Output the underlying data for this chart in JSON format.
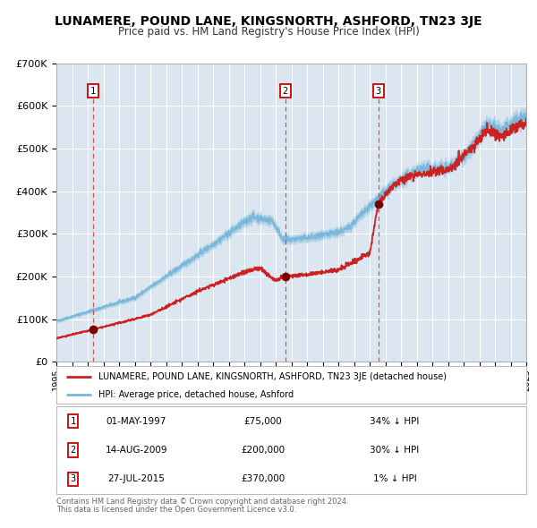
{
  "title": "LUNAMERE, POUND LANE, KINGSNORTH, ASHFORD, TN23 3JE",
  "subtitle": "Price paid vs. HM Land Registry's House Price Index (HPI)",
  "background_color": "#dce6f1",
  "plot_bg_color": "#dce6f1",
  "x_start_year": 1995,
  "x_end_year": 2025,
  "y_min": 0,
  "y_max": 700000,
  "y_ticks": [
    0,
    100000,
    200000,
    300000,
    400000,
    500000,
    600000,
    700000
  ],
  "y_tick_labels": [
    "£0",
    "£100K",
    "£200K",
    "£300K",
    "£400K",
    "£500K",
    "£600K",
    "£700K"
  ],
  "hpi_color": "#7ab8d9",
  "price_color": "#cc2222",
  "sale_marker_color": "#7a0000",
  "dashed_line_color": "#dd3333",
  "annotation_box_color": "#cc0000",
  "sales": [
    {
      "num": 1,
      "date": "01-MAY-1997",
      "price": 75000,
      "label": "34% ↓ HPI",
      "year": 1997.33
    },
    {
      "num": 2,
      "date": "14-AUG-2009",
      "price": 200000,
      "label": "30% ↓ HPI",
      "year": 2009.62
    },
    {
      "num": 3,
      "date": "27-JUL-2015",
      "price": 370000,
      "label": "1% ↓ HPI",
      "year": 2015.56
    }
  ],
  "legend_property_label": "LUNAMERE, POUND LANE, KINGSNORTH, ASHFORD, TN23 3JE (detached house)",
  "legend_hpi_label": "HPI: Average price, detached house, Ashford",
  "footer_line1": "Contains HM Land Registry data © Crown copyright and database right 2024.",
  "footer_line2": "This data is licensed under the Open Government Licence v3.0."
}
